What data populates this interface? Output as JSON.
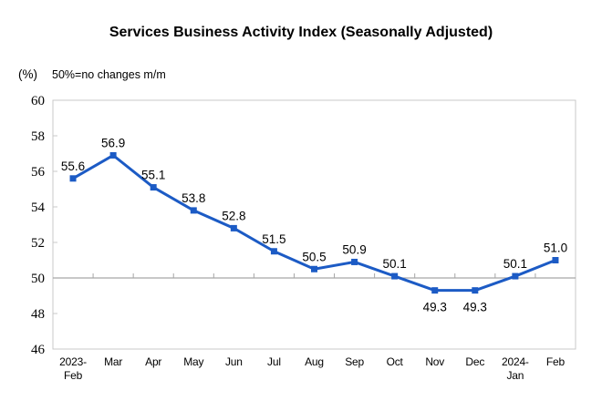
{
  "header": {
    "title": "Services Business Activity Index (Seasonally Adjusted)",
    "unit_label": "(%)",
    "note": "50%=no changes m/m"
  },
  "chart_data": {
    "type": "line",
    "title": "Services Business Activity Index (Seasonally Adjusted)",
    "series_name": "Services Business Activity Index",
    "categories": [
      "2023-\nFeb",
      "Mar",
      "Apr",
      "May",
      "Jun",
      "Jul",
      "Aug",
      "Sep",
      "Oct",
      "Nov",
      "Dec",
      "2024-\nJan",
      "Feb"
    ],
    "values": [
      55.6,
      56.9,
      55.1,
      53.8,
      52.8,
      51.5,
      50.5,
      50.9,
      50.1,
      49.3,
      49.3,
      50.1,
      51.0
    ],
    "point_labels": [
      "55.6",
      "56.9",
      "55.1",
      "53.8",
      "52.8",
      "51.5",
      "50.5",
      "50.9",
      "50.1",
      "49.3",
      "49.3",
      "50.1",
      "51.0"
    ],
    "label_placement": [
      "above",
      "above",
      "above",
      "above",
      "above",
      "above",
      "above",
      "above",
      "above",
      "below",
      "below",
      "above",
      "above"
    ],
    "xlabel": "",
    "ylabel": "(%)",
    "ylim": [
      46,
      60
    ],
    "yticks": [
      46,
      48,
      50,
      52,
      54,
      56,
      58,
      60
    ],
    "reference_line": 50,
    "grid": false,
    "legend": "none",
    "marker": "square",
    "colors": {
      "line": "#1C5BC5",
      "marker": "#1C5BC5",
      "reference_line": "#A6A6A6",
      "plot_border": "#C9C9C9",
      "tick": "#A6A6A6",
      "text": "#000000",
      "background": "#FFFFFF"
    }
  }
}
